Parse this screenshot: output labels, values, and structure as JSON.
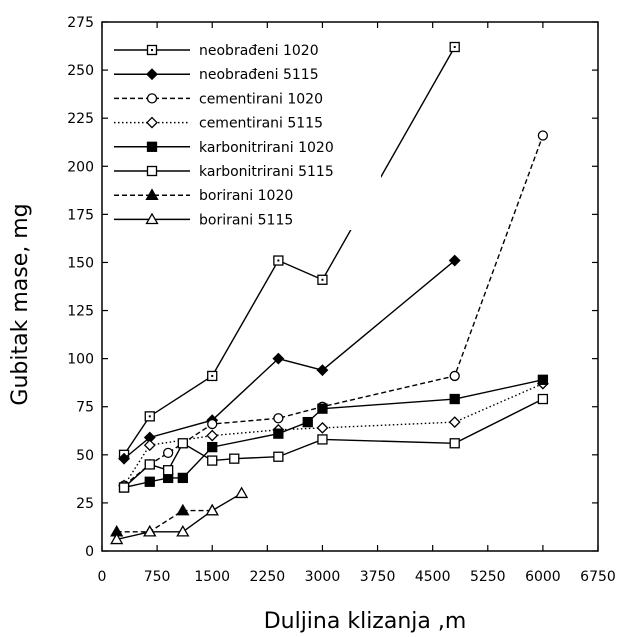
{
  "chart_data": {
    "type": "line",
    "title": "",
    "xlabel": "Duljina klizanja ,m",
    "ylabel": "Gubitak mase, mg",
    "xlim": [
      0,
      6750
    ],
    "ylim": [
      0,
      275
    ],
    "x_ticks": [
      "0",
      "750",
      "1500",
      "2250",
      "3000",
      "3750",
      "4500",
      "5250",
      "6000",
      "6750"
    ],
    "y_ticks": [
      "0",
      "25",
      "50",
      "75",
      "100",
      "125",
      "150",
      "175",
      "200",
      "225",
      "250",
      "275"
    ],
    "grid": false,
    "legend_position": "top-left",
    "series": [
      {
        "name": "neobrađeni 1020",
        "marker": "dotted-square",
        "dash": "solid",
        "points": [
          [
            300,
            50
          ],
          [
            650,
            70
          ],
          [
            1500,
            91
          ],
          [
            2400,
            151
          ],
          [
            3000,
            141
          ],
          [
            4800,
            262
          ]
        ]
      },
      {
        "name": "neobrađeni 5115",
        "marker": "filled-diamond",
        "dash": "solid",
        "points": [
          [
            300,
            48
          ],
          [
            650,
            59
          ],
          [
            1500,
            68
          ],
          [
            2400,
            100
          ],
          [
            3000,
            94
          ],
          [
            4800,
            151
          ]
        ]
      },
      {
        "name": "cementirani 1020",
        "marker": "open-circle",
        "dash": "dashed",
        "points": [
          [
            300,
            34
          ],
          [
            650,
            45
          ],
          [
            900,
            51
          ],
          [
            1500,
            66
          ],
          [
            2400,
            69
          ],
          [
            3000,
            75
          ],
          [
            4800,
            91
          ],
          [
            6000,
            216
          ]
        ]
      },
      {
        "name": "cementirani 5115",
        "marker": "open-diamond",
        "dash": "dotted",
        "points": [
          [
            300,
            34
          ],
          [
            650,
            55
          ],
          [
            1500,
            60
          ],
          [
            2400,
            63
          ],
          [
            3000,
            64
          ],
          [
            4800,
            67
          ],
          [
            6000,
            87
          ]
        ]
      },
      {
        "name": "karbonitrirani 1020",
        "marker": "filled-square",
        "dash": "solid",
        "points": [
          [
            300,
            33
          ],
          [
            650,
            36
          ],
          [
            900,
            38
          ],
          [
            1100,
            38
          ],
          [
            1500,
            54
          ],
          [
            2400,
            61
          ],
          [
            2800,
            67
          ],
          [
            3000,
            74
          ],
          [
            4800,
            79
          ],
          [
            6000,
            89
          ]
        ]
      },
      {
        "name": "karbonitrirani 5115",
        "marker": "open-square",
        "dash": "solid",
        "points": [
          [
            300,
            33
          ],
          [
            650,
            45
          ],
          [
            900,
            42
          ],
          [
            1100,
            56
          ],
          [
            1500,
            47
          ],
          [
            1800,
            48
          ],
          [
            2400,
            49
          ],
          [
            3000,
            58
          ],
          [
            4800,
            56
          ],
          [
            6000,
            79
          ]
        ]
      },
      {
        "name": "borirani 1020",
        "marker": "filled-triangle",
        "dash": "dashed",
        "points": [
          [
            200,
            10
          ],
          [
            650,
            10
          ],
          [
            1100,
            21
          ],
          [
            1500,
            21
          ]
        ]
      },
      {
        "name": "borirani 5115",
        "marker": "open-triangle",
        "dash": "solid",
        "points": [
          [
            200,
            6
          ],
          [
            650,
            10
          ],
          [
            1100,
            10
          ],
          [
            1500,
            21
          ],
          [
            1900,
            30
          ]
        ]
      }
    ]
  }
}
